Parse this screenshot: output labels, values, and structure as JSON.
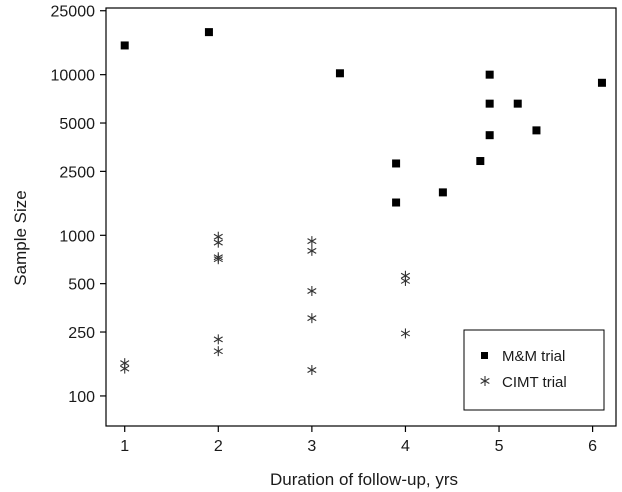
{
  "chart_data": {
    "type": "scatter",
    "title": "",
    "xlabel": "Duration of follow-up, yrs",
    "ylabel": "Sample Size",
    "x_ticks": [
      "1",
      "2",
      "3",
      "4",
      "5",
      "6"
    ],
    "x_tick_values": [
      1,
      2,
      3,
      4,
      5,
      6
    ],
    "y_ticks": [
      "100",
      "250",
      "500",
      "1000",
      "2500",
      "5000",
      "10000",
      "25000"
    ],
    "y_tick_values": [
      100,
      250,
      500,
      1000,
      2500,
      5000,
      10000,
      25000
    ],
    "y_scale": "log",
    "xlim": [
      0.8,
      6.25
    ],
    "ylim": [
      65,
      26000
    ],
    "grid": false,
    "legend_position": "bottom-right",
    "series": [
      {
        "name": "M&M trial",
        "marker": "square",
        "color": "#000000",
        "points": [
          [
            1,
            15200
          ],
          [
            1.9,
            18400
          ],
          [
            3.3,
            10200
          ],
          [
            3.9,
            2800
          ],
          [
            3.9,
            1600
          ],
          [
            4.4,
            1850
          ],
          [
            4.8,
            2900
          ],
          [
            4.9,
            10000
          ],
          [
            4.9,
            6600
          ],
          [
            4.9,
            4200
          ],
          [
            5.2,
            6600
          ],
          [
            5.4,
            4500
          ],
          [
            6.1,
            8900
          ]
        ]
      },
      {
        "name": "CIMT trial",
        "marker": "asterisk",
        "color": "#333333",
        "points": [
          [
            1,
            160
          ],
          [
            1,
            148
          ],
          [
            2,
            980
          ],
          [
            2,
            900
          ],
          [
            2,
            730
          ],
          [
            2,
            710
          ],
          [
            2,
            225
          ],
          [
            2,
            190
          ],
          [
            3,
            920
          ],
          [
            3,
            800
          ],
          [
            3,
            450
          ],
          [
            3,
            305
          ],
          [
            3,
            145
          ],
          [
            4,
            560
          ],
          [
            4,
            520
          ],
          [
            4,
            245
          ]
        ]
      }
    ]
  }
}
